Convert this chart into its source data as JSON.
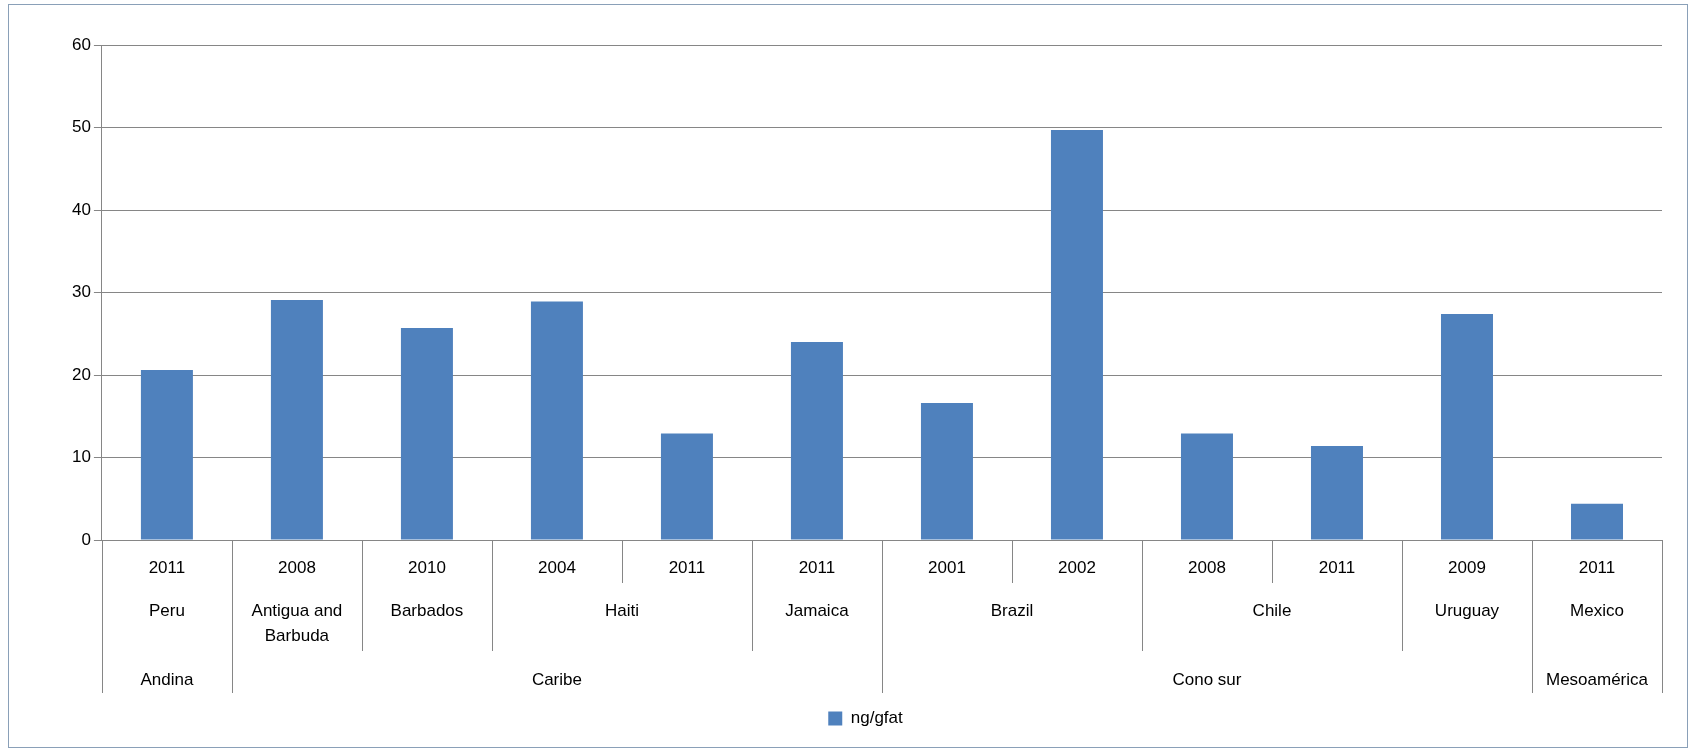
{
  "chart_data": {
    "type": "bar",
    "categories": [
      "2011",
      "2008",
      "2010",
      "2004",
      "2011",
      "2011",
      "2001",
      "2002",
      "2008",
      "2011",
      "2009",
      "2011"
    ],
    "series": [
      {
        "name": "ng/gfat",
        "color": "#4f81bd",
        "values": [
          20.6,
          29.1,
          25.7,
          28.9,
          12.9,
          24.0,
          16.6,
          49.7,
          12.9,
          11.4,
          27.4,
          4.4
        ]
      }
    ],
    "ylim": [
      0,
      60
    ],
    "yticks": [
      0,
      10,
      20,
      30,
      40,
      50,
      60
    ],
    "grid": "y",
    "legend": "bottom",
    "annotations": [
      "Peru",
      "Antigua and Barbuda",
      "Barbados",
      "Haiti",
      "Jamaica",
      "Brazil",
      "Chile",
      "Uruguay",
      "Mexico",
      "Andina",
      "Caribe",
      "Cono sur",
      "Mesoamérica"
    ]
  }
}
